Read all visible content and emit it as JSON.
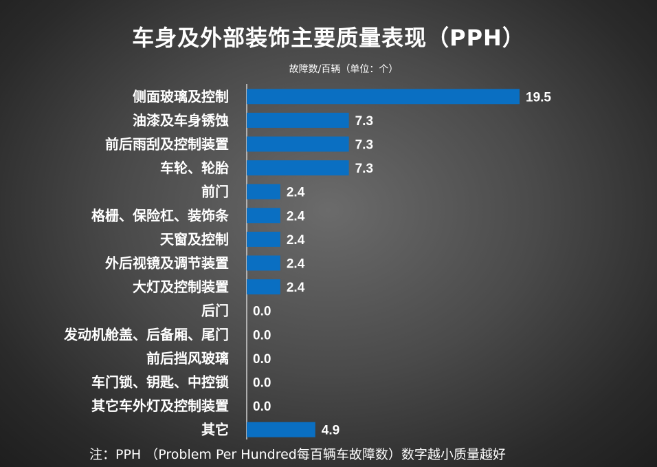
{
  "chart_data": {
    "type": "bar",
    "orientation": "horizontal",
    "title": "车身及外部装饰主要质量表现（PPH）",
    "unit_label": "故障数/百辆（单位：个）",
    "categories": [
      "侧面玻璃及控制",
      "油漆及车身锈蚀",
      "前后雨刮及控制装置",
      "车轮、轮胎",
      "前门",
      "格栅、保险杠、装饰条",
      "天窗及控制",
      "外后视镜及调节装置",
      "大灯及控制装置",
      "后门",
      "发动机舱盖、后备厢、尾门",
      "前后挡风玻璃",
      "车门锁、钥匙、中控锁",
      "其它车外灯及控制装置",
      "其它"
    ],
    "values": [
      19.5,
      7.3,
      7.3,
      7.3,
      2.4,
      2.4,
      2.4,
      2.4,
      2.4,
      0.0,
      0.0,
      0.0,
      0.0,
      0.0,
      4.9
    ],
    "value_labels": [
      "19.5",
      "7.3",
      "7.3",
      "7.3",
      "2.4",
      "2.4",
      "2.4",
      "2.4",
      "2.4",
      "0.0",
      "0.0",
      "0.0",
      "0.0",
      "0.0",
      "4.9"
    ],
    "bar_color": "#0a6fc2",
    "axis_line": true,
    "grid": false,
    "legend": "none",
    "note": "注：PPH （Problem Per Hundred每百辆车故障数）数字越小质量越好"
  }
}
